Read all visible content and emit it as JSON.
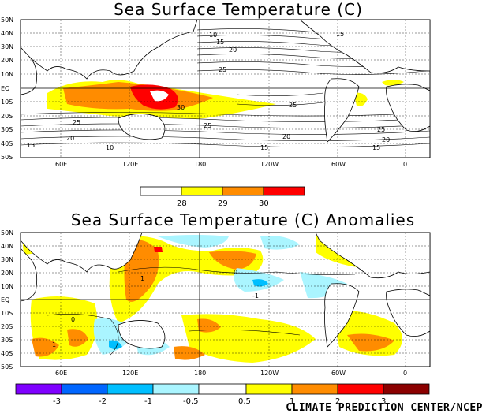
{
  "map1": {
    "title": "Sea Surface Temperature (C)",
    "lat_labels": [
      "50N",
      "40N",
      "30N",
      "20N",
      "10N",
      "EQ",
      "10S",
      "20S",
      "30S",
      "40S",
      "50S"
    ],
    "lon_labels": [
      "60E",
      "120E",
      "180",
      "120W",
      "60W",
      "0"
    ],
    "contour_labels": [
      "10",
      "15",
      "20",
      "25",
      "30",
      "25",
      "25",
      "20",
      "15",
      "10",
      "15",
      "20",
      "25",
      "15",
      "20",
      "25",
      "15"
    ],
    "colorbar": {
      "labels": [
        "28",
        "29",
        "30"
      ],
      "colors": [
        "#ffffff",
        "#ffff00",
        "#ff8c00",
        "#ff0000"
      ]
    }
  },
  "map2": {
    "title": "Sea Surface Temperature (C) Anomalies",
    "lat_labels": [
      "50N",
      "40N",
      "30N",
      "20N",
      "10N",
      "EQ",
      "10S",
      "20S",
      "30S",
      "40S",
      "50S"
    ],
    "lon_labels": [
      "60E",
      "120E",
      "180",
      "120W",
      "60W",
      "0"
    ],
    "contour_labels": [
      "-1",
      "0",
      "1",
      "0",
      "1"
    ],
    "colorbar": {
      "labels": [
        "-3",
        "-2",
        "-1",
        "-0.5",
        "0.5",
        "1",
        "2",
        "3"
      ],
      "colors": [
        "#7f00ff",
        "#0066ff",
        "#00bfff",
        "#aaf5ff",
        "#ffffff",
        "#ffff00",
        "#ff8c00",
        "#ff0000",
        "#8b0000"
      ]
    }
  },
  "credit": "CLIMATE PREDICTION CENTER/NCEP"
}
